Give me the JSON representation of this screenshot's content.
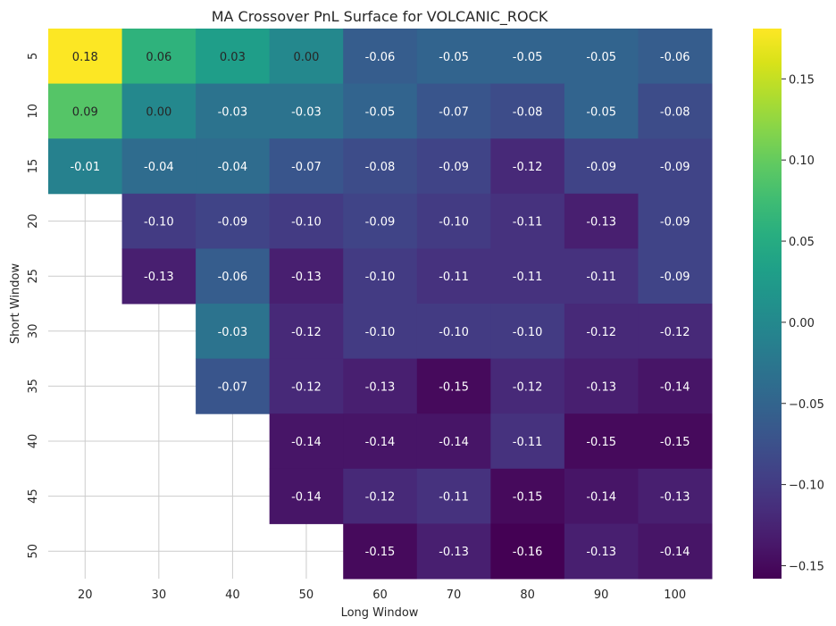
{
  "chart_data": {
    "type": "heatmap",
    "title": "MA Crossover PnL Surface for VOLCANIC_ROCK",
    "xlabel": "Long Window",
    "ylabel": "Short Window",
    "x_categories": [
      "20",
      "30",
      "40",
      "50",
      "60",
      "70",
      "80",
      "90",
      "100"
    ],
    "y_categories": [
      "5",
      "10",
      "15",
      "20",
      "25",
      "30",
      "35",
      "40",
      "45",
      "50"
    ],
    "values": [
      [
        0.18,
        0.06,
        0.03,
        -0.0,
        -0.06,
        -0.05,
        -0.05,
        -0.05,
        -0.06
      ],
      [
        0.09,
        0.0,
        -0.03,
        -0.03,
        -0.05,
        -0.07,
        -0.08,
        -0.05,
        -0.08
      ],
      [
        -0.01,
        -0.04,
        -0.04,
        -0.07,
        -0.08,
        -0.09,
        -0.12,
        -0.09,
        -0.09
      ],
      [
        null,
        -0.1,
        -0.09,
        -0.1,
        -0.09,
        -0.1,
        -0.11,
        -0.13,
        -0.09
      ],
      [
        null,
        -0.13,
        -0.06,
        -0.13,
        -0.1,
        -0.11,
        -0.11,
        -0.11,
        -0.09
      ],
      [
        null,
        null,
        -0.03,
        -0.12,
        -0.1,
        -0.1,
        -0.1,
        -0.12,
        -0.12
      ],
      [
        null,
        null,
        -0.07,
        -0.12,
        -0.13,
        -0.15,
        -0.12,
        -0.13,
        -0.14
      ],
      [
        null,
        null,
        null,
        -0.14,
        -0.14,
        -0.14,
        -0.11,
        -0.15,
        -0.15
      ],
      [
        null,
        null,
        null,
        -0.14,
        -0.12,
        -0.11,
        -0.15,
        -0.14,
        -0.13
      ],
      [
        null,
        null,
        null,
        null,
        -0.15,
        -0.13,
        -0.16,
        -0.13,
        -0.14
      ]
    ],
    "value_format": "2dp",
    "colormap": "viridis",
    "vmin": -0.158,
    "vmax": 0.181,
    "colorbar_ticks": [
      "0.15",
      "0.10",
      "0.05",
      "0.00",
      "−0.05",
      "−0.10",
      "−0.15"
    ],
    "colorbar_tick_values": [
      0.15,
      0.1,
      0.05,
      0.0,
      -0.05,
      -0.1,
      -0.15
    ],
    "grid": true,
    "colors": {
      "grid": "#cccccc",
      "label_dark": "#262626",
      "label_light": "#ffffff"
    }
  }
}
